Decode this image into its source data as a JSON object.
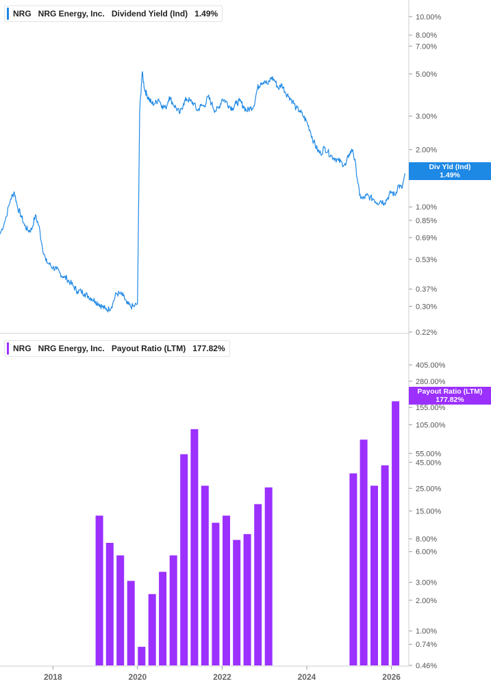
{
  "colors": {
    "yield": "#1e88e5",
    "payout": "#9b30ff",
    "grid": "#cccccc"
  },
  "top_panel": {
    "ticker": "NRG",
    "company": "NRG Energy, Inc.",
    "metric": "Dividend Yield (Ind)",
    "value": "1.49%",
    "badge_label": "Div Yld (Ind)",
    "badge_value": "1.49%"
  },
  "bottom_panel": {
    "ticker": "NRG",
    "company": "NRG Energy, Inc.",
    "metric": "Payout Ratio (LTM)",
    "value": "177.82%",
    "badge_label": "Payout Ratio (LTM)",
    "badge_value": "177.82%"
  },
  "chart_data": [
    {
      "type": "line",
      "series": [
        {
          "name": "Dividend Yield (Ind)",
          "x": [
            "2016-10-01",
            "2016-11-15",
            "2017-01-01",
            "2017-02-01",
            "2017-03-01",
            "2017-04-01",
            "2017-05-01",
            "2017-06-01",
            "2017-07-01",
            "2017-08-01",
            "2017-09-01",
            "2017-10-01",
            "2017-11-01",
            "2017-12-01",
            "2018-01-01",
            "2018-02-01",
            "2018-03-01",
            "2018-04-01",
            "2018-05-01",
            "2018-06-01",
            "2018-07-01",
            "2018-08-01",
            "2018-09-01",
            "2018-10-01",
            "2018-11-01",
            "2018-12-01",
            "2019-01-01",
            "2019-02-01",
            "2019-03-01",
            "2019-04-01",
            "2019-05-01",
            "2019-06-01",
            "2019-07-01",
            "2019-08-01",
            "2019-09-01",
            "2019-10-01",
            "2019-11-01",
            "2019-12-01",
            "2020-01-01",
            "2020-01-20",
            "2020-02-10",
            "2020-03-01",
            "2020-03-20",
            "2020-04-10",
            "2020-05-01",
            "2020-06-01",
            "2020-07-01",
            "2020-08-01",
            "2020-09-01",
            "2020-10-01",
            "2020-11-01",
            "2020-12-01",
            "2021-01-01",
            "2021-02-01",
            "2021-03-01",
            "2021-04-01",
            "2021-05-01",
            "2021-06-01",
            "2021-07-01",
            "2021-08-01",
            "2021-09-01",
            "2021-10-01",
            "2021-11-01",
            "2021-12-01",
            "2022-01-01",
            "2022-02-01",
            "2022-03-01",
            "2022-04-01",
            "2022-05-01",
            "2022-06-01",
            "2022-07-01",
            "2022-08-01",
            "2022-09-01",
            "2022-10-01",
            "2022-11-01",
            "2022-12-01",
            "2023-01-01",
            "2023-02-01",
            "2023-03-01",
            "2023-04-01",
            "2023-05-01",
            "2023-06-01",
            "2023-07-01",
            "2023-08-01",
            "2023-09-01",
            "2023-10-01",
            "2023-11-01",
            "2023-12-01",
            "2024-01-01",
            "2024-02-01",
            "2024-03-01",
            "2024-04-01",
            "2024-05-01",
            "2024-06-01",
            "2024-07-01",
            "2024-08-01",
            "2024-09-01",
            "2024-10-01",
            "2024-11-01",
            "2024-12-01",
            "2025-01-01",
            "2025-02-01",
            "2025-03-01",
            "2025-04-01",
            "2025-05-01",
            "2025-06-01",
            "2025-07-01",
            "2025-08-01",
            "2025-09-01",
            "2025-10-01",
            "2025-11-01",
            "2025-12-01",
            "2026-01-01",
            "2026-02-01",
            "2026-03-01",
            "2026-04-01",
            "2026-05-01"
          ],
          "values": [
            0.72,
            0.85,
            1.1,
            1.2,
            1.0,
            0.9,
            0.8,
            0.75,
            0.76,
            0.9,
            0.8,
            0.62,
            0.52,
            0.5,
            0.48,
            0.47,
            0.45,
            0.43,
            0.42,
            0.4,
            0.38,
            0.36,
            0.36,
            0.35,
            0.34,
            0.33,
            0.32,
            0.31,
            0.3,
            0.29,
            0.29,
            0.31,
            0.35,
            0.35,
            0.34,
            0.31,
            0.3,
            0.3,
            0.31,
            3.2,
            5.1,
            4.2,
            3.9,
            3.7,
            3.5,
            3.5,
            3.7,
            3.4,
            3.3,
            3.8,
            3.5,
            3.3,
            3.1,
            3.5,
            3.7,
            3.6,
            3.5,
            3.2,
            3.4,
            3.4,
            3.8,
            3.5,
            3.2,
            3.3,
            3.7,
            3.6,
            3.4,
            3.3,
            3.5,
            3.6,
            3.4,
            3.2,
            3.3,
            3.4,
            4.2,
            4.5,
            4.6,
            4.4,
            4.8,
            4.6,
            4.2,
            4.4,
            4.0,
            3.8,
            3.6,
            3.3,
            3.2,
            3.0,
            2.8,
            2.5,
            2.2,
            2.0,
            1.9,
            2.05,
            1.95,
            1.85,
            1.8,
            1.75,
            1.7,
            1.65,
            1.9,
            2.0,
            1.6,
            1.15,
            1.1,
            1.15,
            1.12,
            1.1,
            1.05,
            1.08,
            1.05,
            1.12,
            1.2,
            1.15,
            1.3,
            1.25,
            1.49
          ]
        }
      ],
      "y_scale": "log",
      "y_ticks": [
        "10.00%",
        "8.00%",
        "7.00%",
        "5.00%",
        "3.00%",
        "2.00%",
        "1.00%",
        "0.85%",
        "0.69%",
        "0.53%",
        "0.37%",
        "0.30%",
        "0.22%"
      ],
      "y_tick_values": [
        10,
        8,
        7,
        5,
        3,
        2,
        1,
        0.85,
        0.69,
        0.53,
        0.37,
        0.3,
        0.22
      ],
      "ylim": [
        0.22,
        10.8
      ],
      "xlim": [
        "2016-10-01",
        "2026-05-31"
      ],
      "grid": false
    },
    {
      "type": "bar",
      "series": [
        {
          "name": "Payout Ratio (LTM)",
          "x": [
            "2019-01-01",
            "2019-04-01",
            "2019-07-01",
            "2019-10-01",
            "2020-01-01",
            "2020-04-01",
            "2020-07-01",
            "2020-10-01",
            "2021-01-01",
            "2021-04-01",
            "2021-07-01",
            "2021-10-01",
            "2022-01-01",
            "2022-04-01",
            "2022-07-01",
            "2022-10-01",
            "2023-01-01",
            "2025-01-01",
            "2025-04-01",
            "2025-07-01",
            "2025-10-01",
            "2026-01-01"
          ],
          "values": [
            13.5,
            7.3,
            5.5,
            3.1,
            0.7,
            2.3,
            3.8,
            5.5,
            54,
            95,
            26.5,
            11.5,
            13.5,
            7.8,
            8.9,
            17.5,
            25.5,
            35,
            75,
            26.5,
            42,
            178
          ]
        }
      ],
      "y_scale": "log",
      "y_ticks": [
        "405.00%",
        "280.00%",
        "155.00%",
        "105.00%",
        "55.00%",
        "45.00%",
        "25.00%",
        "15.00%",
        "8.00%",
        "6.00%",
        "3.00%",
        "2.00%",
        "1.00%",
        "0.74%",
        "0.46%"
      ],
      "y_tick_values": [
        405,
        280,
        155,
        105,
        55,
        45,
        25,
        15,
        8,
        6,
        3,
        2,
        1,
        0.74,
        0.46
      ],
      "ylim": [
        0.46,
        480
      ],
      "x_ticks": [
        "2018",
        "2020",
        "2022",
        "2024",
        "2026"
      ],
      "x_tick_values": [
        "2018-01-01",
        "2020-01-01",
        "2022-01-01",
        "2024-01-01",
        "2026-01-01"
      ],
      "xlim": [
        "2016-10-01",
        "2026-05-31"
      ],
      "grid": false
    }
  ]
}
